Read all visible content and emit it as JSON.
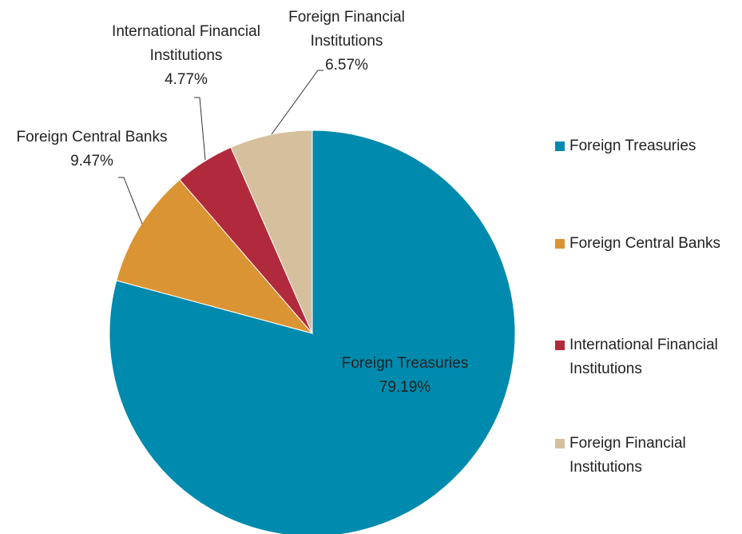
{
  "chart_data": {
    "type": "pie",
    "categories": [
      "Foreign Treasuries",
      "Foreign Central Banks",
      "International Financial Institutions",
      "Foreign Financial Institutions"
    ],
    "values": [
      79.19,
      9.47,
      4.77,
      6.57
    ],
    "value_labels": [
      "79.19%",
      "9.47%",
      "4.77%",
      "6.57%"
    ],
    "colors": [
      "#008aad",
      "#db9433",
      "#b12a3b",
      "#d6bf9d"
    ],
    "legend": "right"
  }
}
